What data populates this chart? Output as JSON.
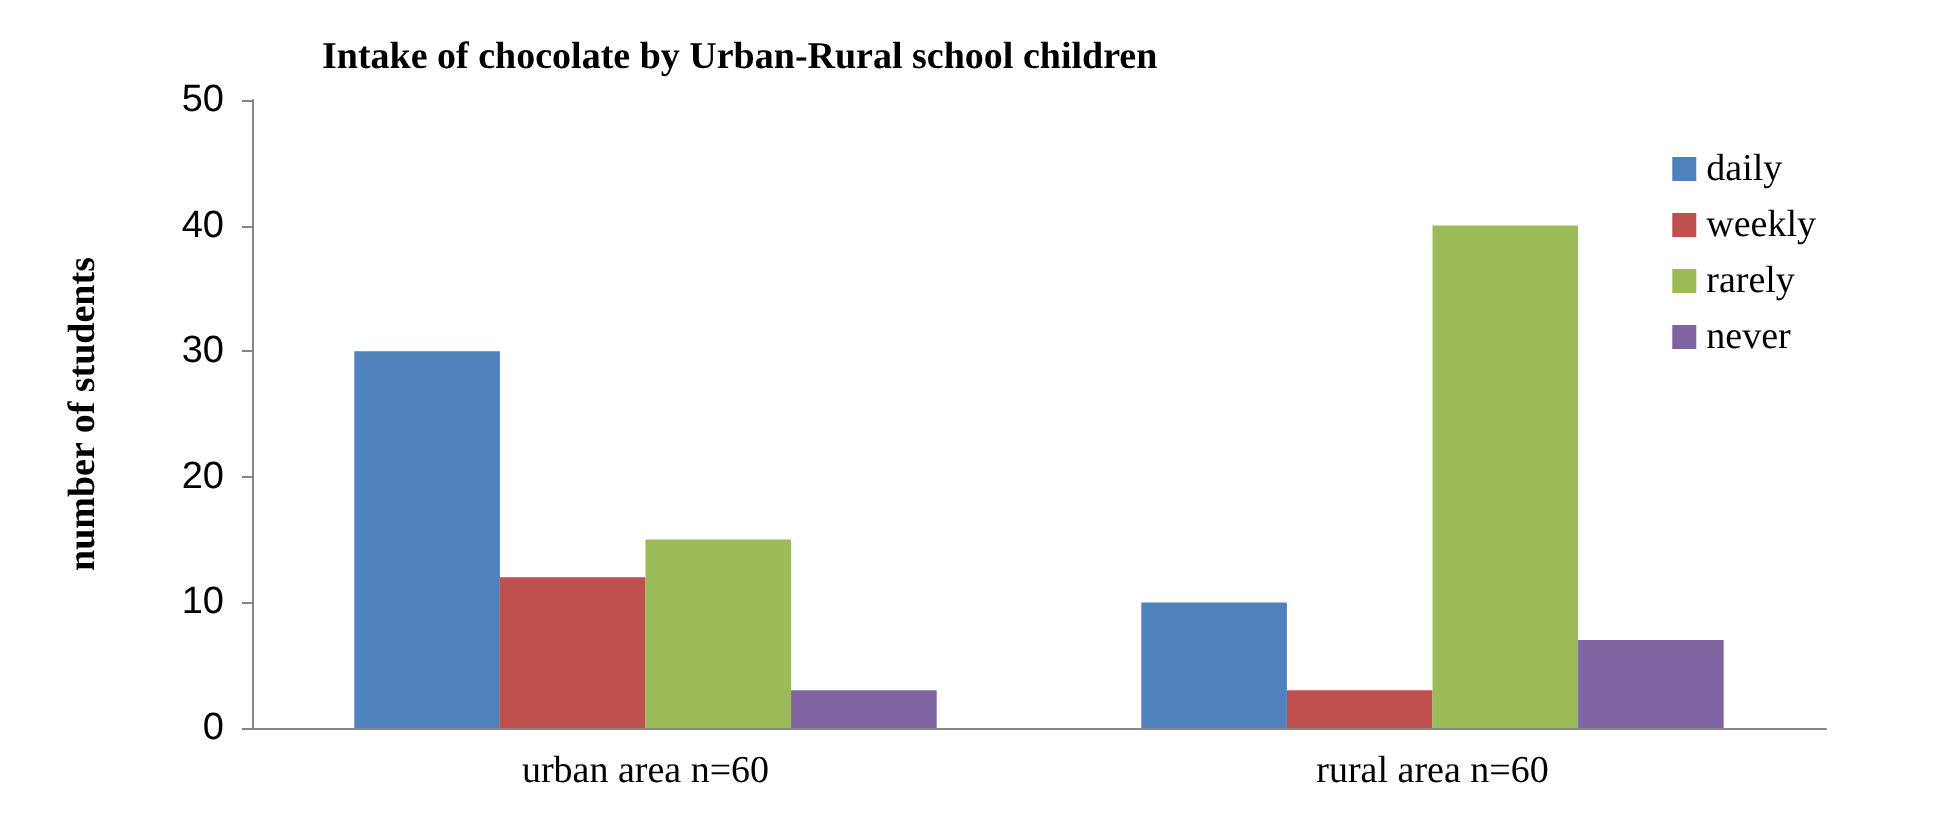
{
  "chart_data": {
    "type": "bar",
    "title": "Intake of chocolate by Urban-Rural school children",
    "ylabel": "number of students",
    "categories": [
      "urban area n=60",
      "rural area n=60"
    ],
    "series": [
      {
        "name": "daily",
        "color": "#4f81bd",
        "values": [
          30,
          10
        ]
      },
      {
        "name": "weekly",
        "color": "#c0504d",
        "values": [
          12,
          3
        ]
      },
      {
        "name": "rarely",
        "color": "#9bbb59",
        "values": [
          15,
          40
        ]
      },
      {
        "name": "never",
        "color": "#8064a2",
        "values": [
          3,
          7
        ]
      }
    ],
    "ylim": [
      0,
      50
    ],
    "yticks": [
      0,
      10,
      20,
      30,
      40,
      50
    ],
    "grid": false,
    "legend": "top right"
  }
}
